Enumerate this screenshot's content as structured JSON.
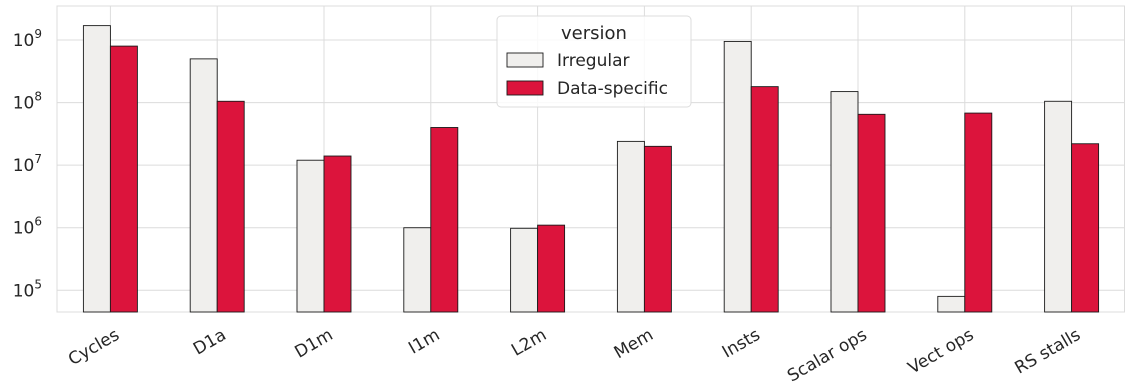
{
  "chart_data": {
    "type": "bar",
    "yscale": "log",
    "ylim": [
      45000,
      3500000000
    ],
    "y_ticks": [
      {
        "value": 100000,
        "base": "10",
        "exp": "5"
      },
      {
        "value": 1000000,
        "base": "10",
        "exp": "6"
      },
      {
        "value": 10000000,
        "base": "10",
        "exp": "7"
      },
      {
        "value": 100000000,
        "base": "10",
        "exp": "8"
      },
      {
        "value": 1000000000,
        "base": "10",
        "exp": "9"
      }
    ],
    "categories": [
      "Cycles",
      "D1a",
      "D1m",
      "I1m",
      "L2m",
      "Mem",
      "Insts",
      "Scalar ops",
      "Vect ops",
      "RS stalls"
    ],
    "series": [
      {
        "name": "Irregular",
        "color": "#f0efed",
        "values": [
          1700000000,
          500000000,
          12000000,
          1000000,
          980000,
          24000000,
          950000000,
          150000000,
          80000,
          105000000
        ]
      },
      {
        "name": "Data-specific",
        "color": "#dc143c",
        "values": [
          800000000,
          105000000,
          14000000,
          40000000,
          1100000,
          20000000,
          180000000,
          65000000,
          68000000,
          22000000
        ]
      }
    ],
    "legend": {
      "title": "version",
      "position": "top-center"
    },
    "grid": true
  }
}
